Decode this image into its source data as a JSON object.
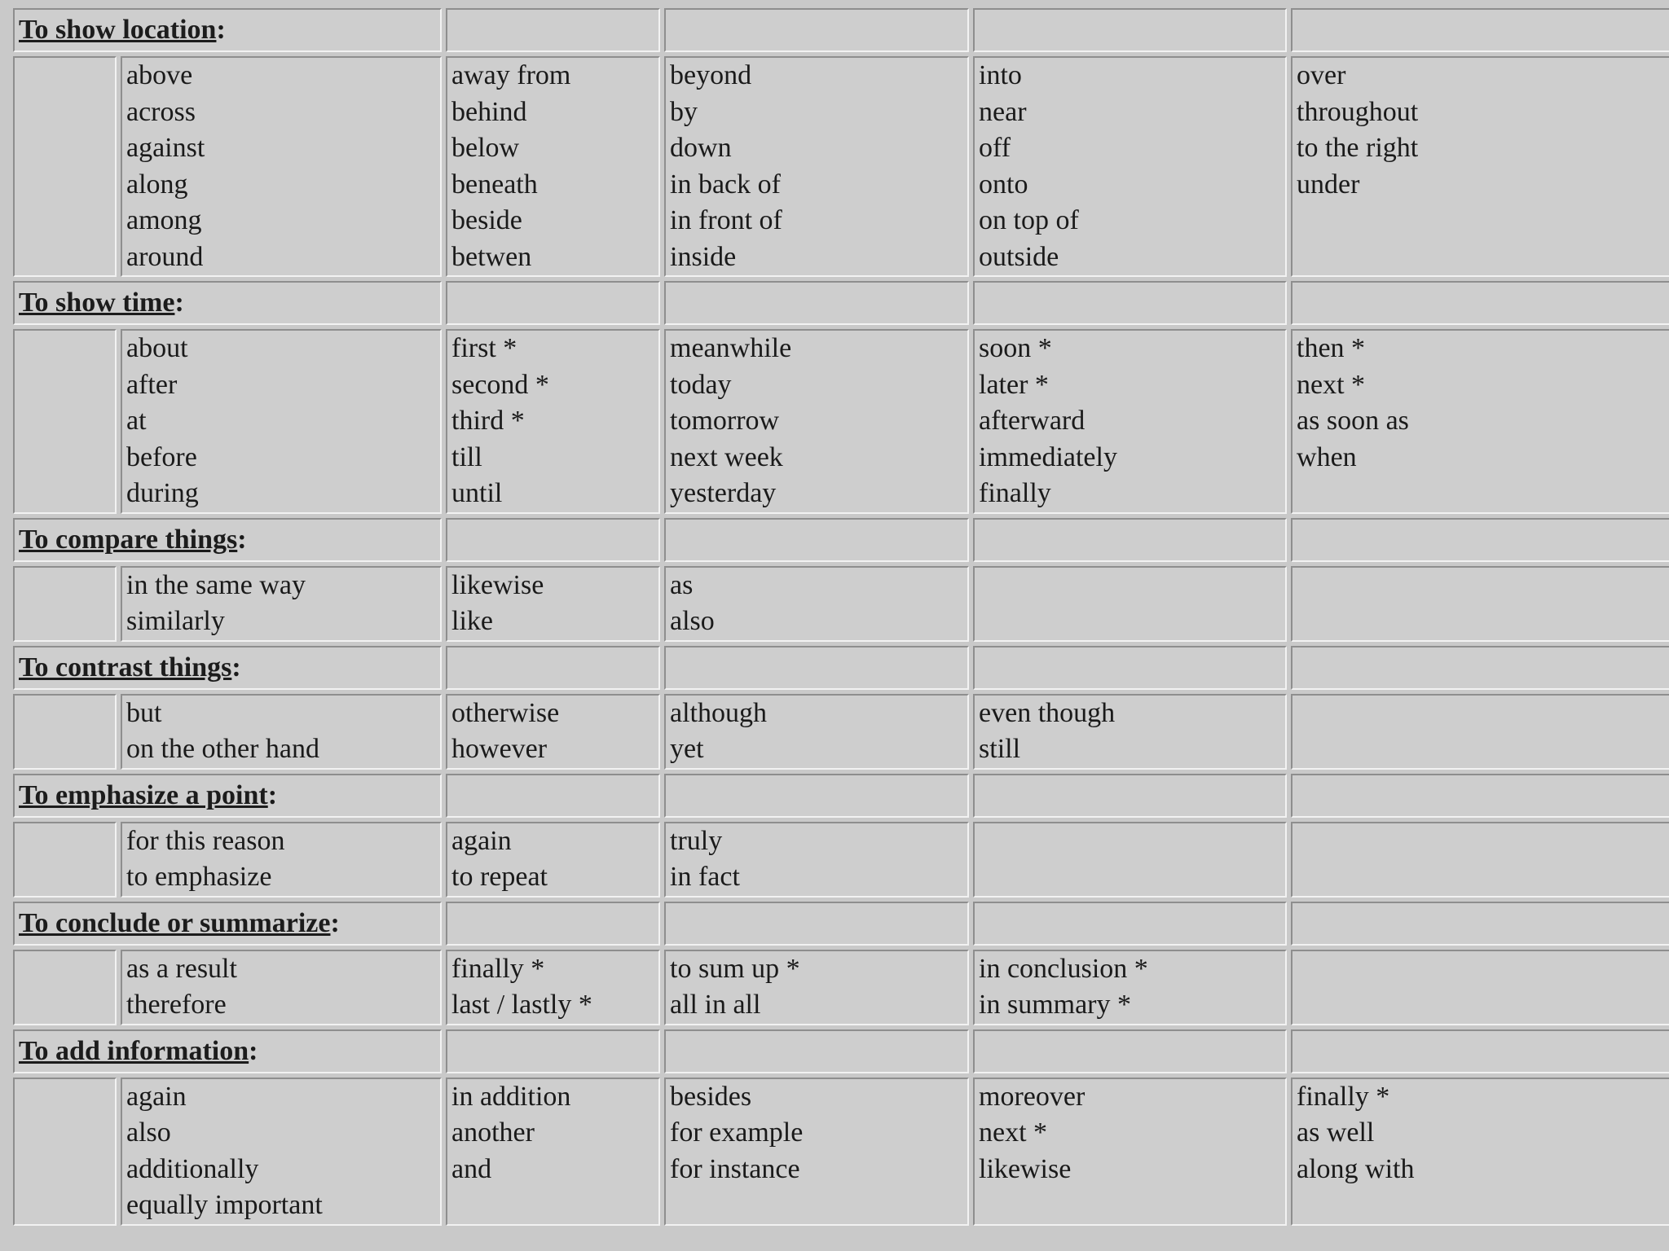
{
  "sections": [
    {
      "title": "To show location",
      "colon": ":",
      "columns": [
        [
          "above",
          "across",
          "against",
          "along",
          "among",
          "around"
        ],
        [
          "away from",
          "behind",
          "below",
          "beneath",
          "beside",
          "betwen"
        ],
        [
          "beyond",
          "by",
          "down",
          "in back of",
          "in front of",
          "inside"
        ],
        [
          "into",
          "near",
          "off",
          "onto",
          "on top of",
          "outside"
        ],
        [
          "over",
          "throughout",
          "to the right",
          "under"
        ]
      ]
    },
    {
      "title": "To show time",
      "colon": ":",
      "columns": [
        [
          "about",
          "after",
          "at",
          "before",
          "during"
        ],
        [
          "first *",
          "second *",
          "third *",
          "till",
          "until"
        ],
        [
          "meanwhile",
          "today",
          "tomorrow",
          "next week",
          "yesterday"
        ],
        [
          "soon *",
          "later *",
          "afterward",
          "immediately",
          "finally"
        ],
        [
          "then *",
          "next *",
          "as soon as",
          "when"
        ]
      ]
    },
    {
      "title": "To compare things",
      "colon": ":",
      "columns": [
        [
          "in the same way",
          "similarly"
        ],
        [
          "likewise",
          "like"
        ],
        [
          "as",
          "also"
        ],
        [],
        []
      ]
    },
    {
      "title": "To contrast things",
      "colon": ":",
      "columns": [
        [
          "but",
          "on the other hand"
        ],
        [
          "otherwise",
          "however"
        ],
        [
          "although",
          "yet"
        ],
        [
          "even though",
          "still"
        ],
        []
      ]
    },
    {
      "title": "To emphasize a point",
      "colon": ":",
      "columns": [
        [
          "for this reason",
          "to emphasize"
        ],
        [
          "again",
          "to repeat"
        ],
        [
          "truly",
          "in fact"
        ],
        [],
        []
      ]
    },
    {
      "title": "To conclude or summarize",
      "colon": ":",
      "columns": [
        [
          "as a result",
          "therefore"
        ],
        [
          "finally *",
          "last / lastly *"
        ],
        [
          "to sum up *",
          "all in all"
        ],
        [
          "in conclusion *",
          "in summary *"
        ],
        []
      ]
    },
    {
      "title": "To add information",
      "colon": ":",
      "columns": [
        [
          "again",
          "also",
          "additionally",
          "equally important"
        ],
        [
          "in addition",
          "another",
          "and"
        ],
        [
          "besides",
          "for example",
          "for instance"
        ],
        [
          "moreover",
          "next *",
          "likewise"
        ],
        [
          "finally *",
          "as well",
          "along with"
        ]
      ]
    }
  ],
  "colors": {
    "background": "#c9c9c9",
    "cell": "#cecece",
    "border_dark": "#8e8e8e",
    "border_light": "#f2f2f2"
  }
}
